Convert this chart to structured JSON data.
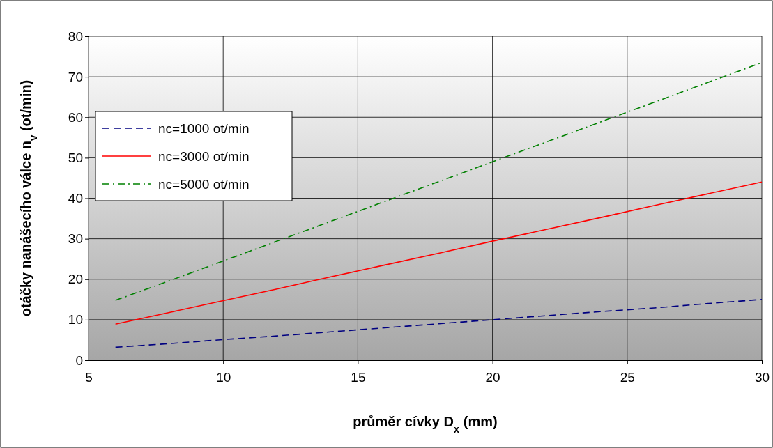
{
  "chart_data": {
    "type": "line",
    "xlabel": "průměr cívky D$_{x}$ (mm)",
    "ylabel": "otáčky nanášecího válce n$_{v}$ (ot/min)",
    "x": [
      6,
      8,
      10,
      12,
      14,
      16,
      18,
      20,
      22,
      24,
      26,
      28,
      30
    ],
    "series": [
      {
        "name": "nc=1000 ot/min",
        "color": "#000080",
        "line_style": "dashed",
        "values": [
          3.2,
          4.1,
          5.1,
          6.0,
          7.0,
          8.0,
          9.0,
          10.0,
          11.0,
          12.0,
          12.9,
          14.0,
          15.0
        ]
      },
      {
        "name": "nc=3000 ot/min",
        "color": "#ff0000",
        "line_style": "solid",
        "values": [
          8.9,
          11.8,
          14.7,
          17.6,
          20.6,
          23.5,
          26.4,
          29.4,
          32.3,
          35.2,
          38.2,
          41.1,
          44.0
        ]
      },
      {
        "name": "nc=5000 ot/min",
        "color": "#008000",
        "line_style": "dashdot",
        "values": [
          14.8,
          19.6,
          24.5,
          29.4,
          34.3,
          39.2,
          44.1,
          49.0,
          53.9,
          58.8,
          63.7,
          68.6,
          73.5
        ]
      }
    ],
    "xlim": [
      5,
      30
    ],
    "xticks": [
      5,
      10,
      15,
      20,
      25,
      30
    ],
    "ylim": [
      0,
      80
    ],
    "yticks": [
      0,
      10,
      20,
      30,
      40,
      50,
      60,
      70,
      80
    ],
    "grid": true,
    "legend": "top left",
    "marker": "none"
  }
}
